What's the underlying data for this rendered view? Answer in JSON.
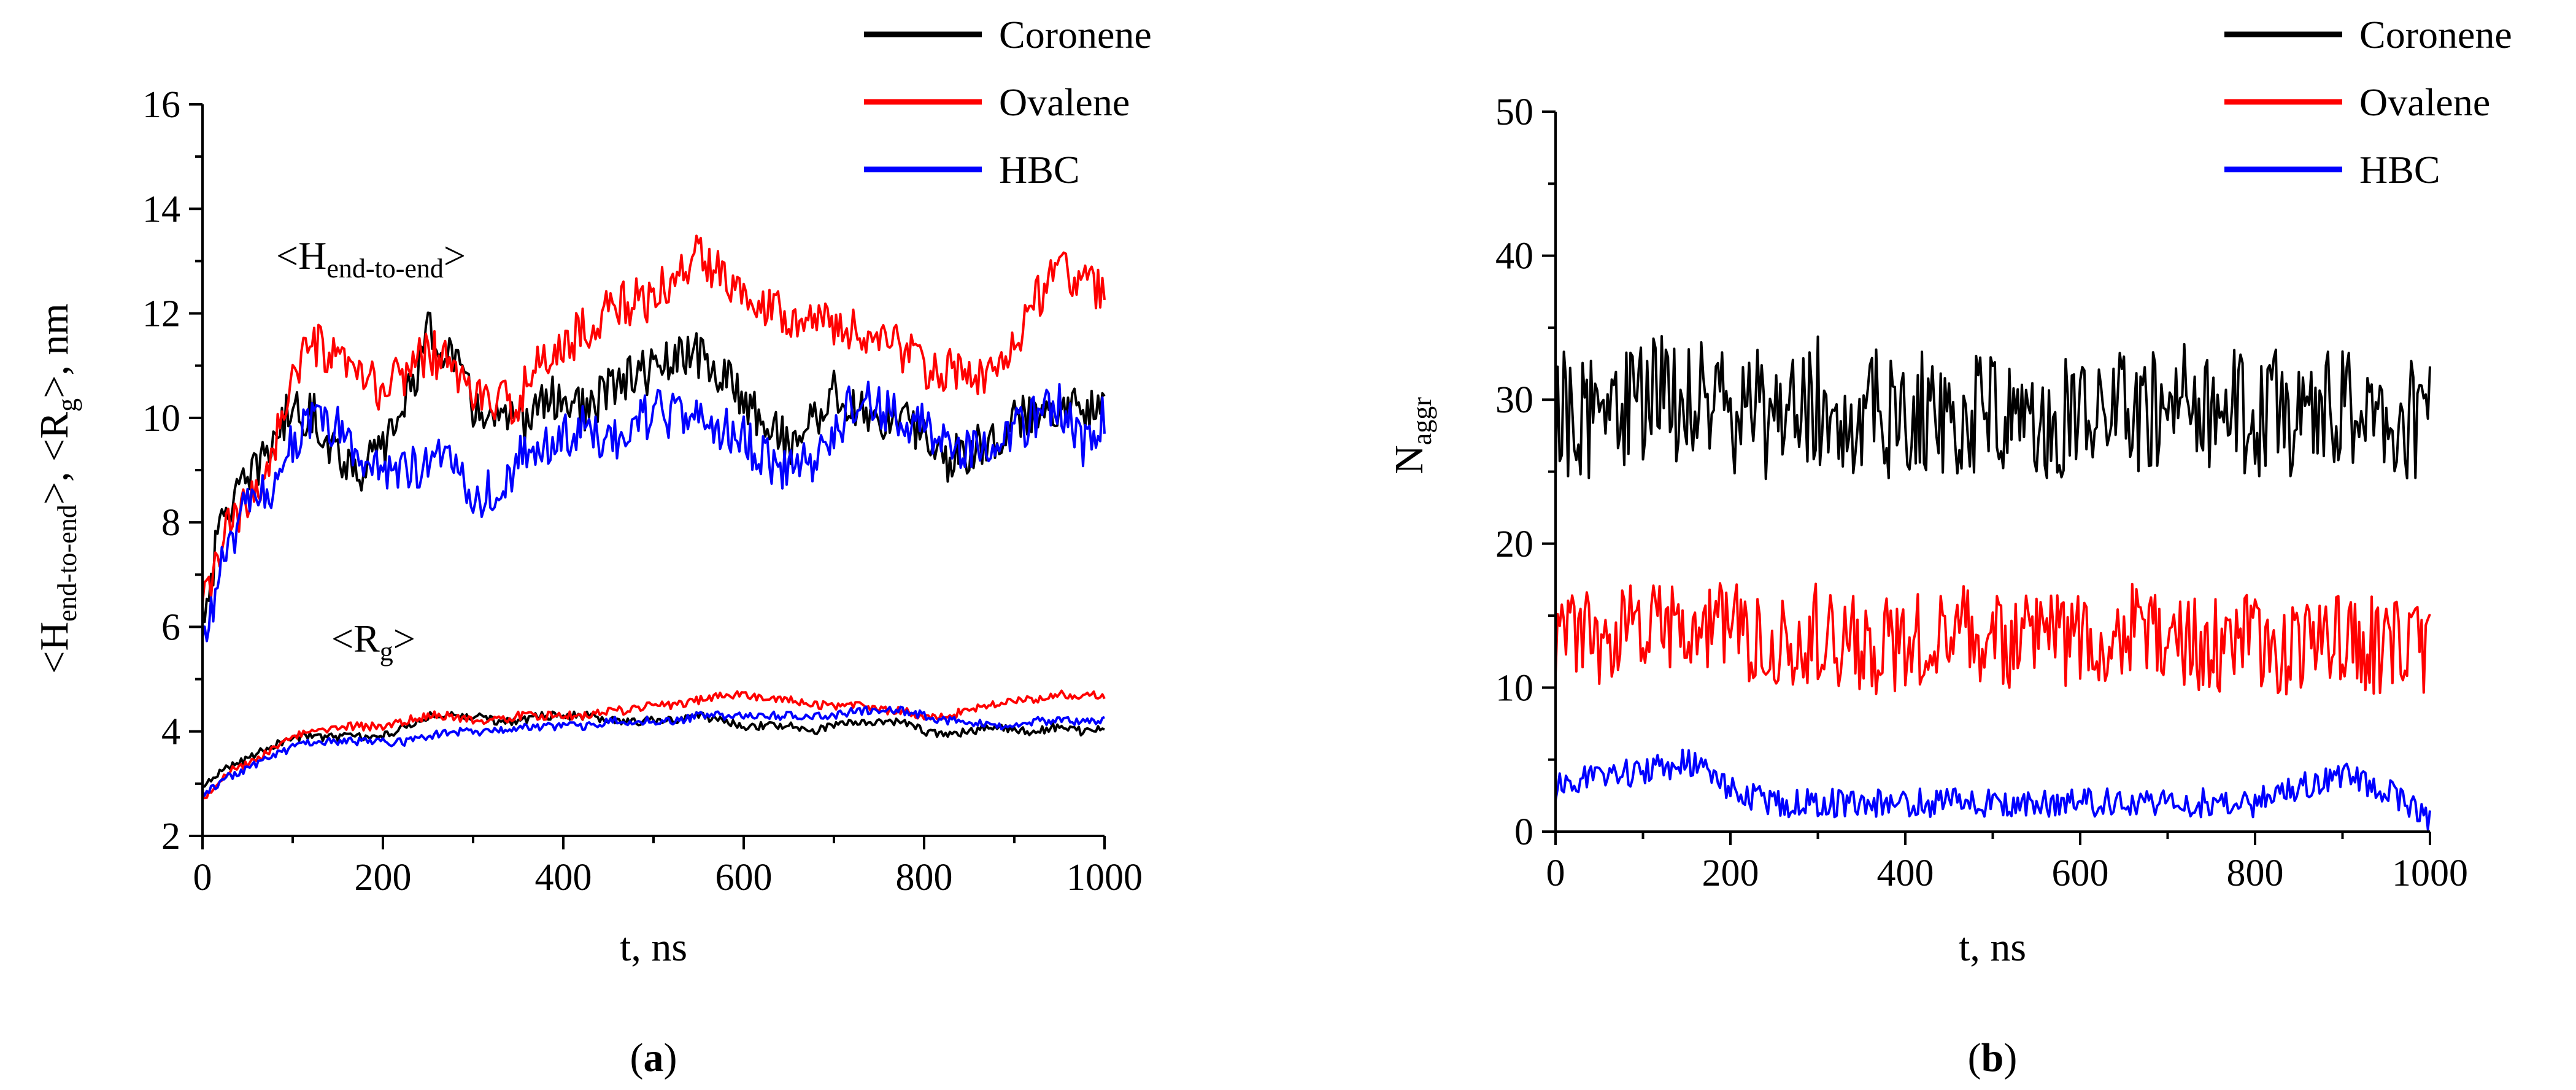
{
  "colors": {
    "coronene": "#000000",
    "ovalene": "#ff0000",
    "hbc": "#0000ff"
  },
  "panels": {
    "a": {
      "label_open": "(",
      "label_letter": "a",
      "label_close": ")"
    },
    "b": {
      "label_open": "(",
      "label_letter": "b",
      "label_close": ")"
    }
  },
  "chart_data": [
    {
      "type": "line",
      "panel": "a",
      "xlabel": "t, ns",
      "ylabel_parts": [
        "<H",
        "end-to-end",
        ">, <R",
        "g",
        ">, nm"
      ],
      "xlim": [
        0,
        1000
      ],
      "ylim": [
        2,
        16
      ],
      "xticks": [
        "0",
        "200",
        "400",
        "600",
        "800",
        "1000"
      ],
      "yticks": [
        "2",
        "4",
        "6",
        "8",
        "10",
        "12",
        "14",
        "16"
      ],
      "legend": {
        "placement": "top-right",
        "entries": [
          "Coronene",
          "Ovalene",
          "HBC"
        ]
      },
      "annotations": [
        {
          "parts": [
            "<H",
            "end-to-end",
            ">"
          ],
          "at": [
            180,
            12.6
          ]
        },
        {
          "parts": [
            "<R",
            "g",
            ">"
          ],
          "at": [
            210,
            5.3
          ]
        }
      ],
      "grid": false,
      "x": [
        0,
        25,
        50,
        75,
        100,
        125,
        150,
        175,
        200,
        225,
        250,
        275,
        300,
        325,
        350,
        375,
        400,
        425,
        450,
        475,
        500,
        525,
        550,
        575,
        600,
        625,
        650,
        675,
        700,
        725,
        750,
        775,
        800,
        825,
        850,
        875,
        900,
        925,
        950,
        975,
        1000
      ],
      "series": [
        {
          "name": "Coronene",
          "group": "H_end_to_end",
          "noise": 0.45,
          "values": [
            6.2,
            8.3,
            8.7,
            9.5,
            10.2,
            10.0,
            9.3,
            9.0,
            9.4,
            10.3,
            11.6,
            11.3,
            10.2,
            10.0,
            9.8,
            10.3,
            10.4,
            10.1,
            10.5,
            10.8,
            10.9,
            11.1,
            11.2,
            10.8,
            10.4,
            9.9,
            9.5,
            9.9,
            10.5,
            10.1,
            10.0,
            9.9,
            9.7,
            9.2,
            9.4,
            9.6,
            9.9,
            10.1,
            10.3,
            10.1,
            10.6
          ]
        },
        {
          "name": "Ovalene",
          "group": "H_end_to_end",
          "noise": 0.45,
          "values": [
            6.3,
            7.8,
            8.3,
            9.2,
            10.8,
            11.4,
            11.0,
            10.8,
            10.5,
            10.9,
            11.3,
            11.0,
            10.5,
            10.2,
            10.4,
            11.0,
            11.4,
            11.7,
            12.1,
            12.2,
            12.3,
            12.7,
            13.1,
            12.8,
            12.5,
            12.2,
            12.0,
            11.9,
            11.8,
            11.6,
            11.6,
            11.3,
            11.0,
            10.9,
            10.7,
            10.8,
            11.5,
            12.3,
            12.9,
            12.5,
            12.5
          ]
        },
        {
          "name": "HBC",
          "group": "H_end_to_end",
          "noise": 0.45,
          "values": [
            5.6,
            7.4,
            8.3,
            8.6,
            9.6,
            9.9,
            9.8,
            9.2,
            9.0,
            9.1,
            9.0,
            9.4,
            8.5,
            8.6,
            9.2,
            9.4,
            9.6,
            9.8,
            9.5,
            9.9,
            10.1,
            10.0,
            9.9,
            9.8,
            9.6,
            9.2,
            8.9,
            9.2,
            9.7,
            10.4,
            10.2,
            10.0,
            9.8,
            9.6,
            9.4,
            9.6,
            9.8,
            10.0,
            10.2,
            9.5,
            10.0
          ]
        },
        {
          "name": "Coronene",
          "group": "Rg",
          "noise": 0.08,
          "values": [
            2.9,
            3.3,
            3.5,
            3.7,
            3.9,
            3.9,
            3.9,
            3.9,
            3.9,
            4.1,
            4.3,
            4.3,
            4.3,
            4.2,
            4.2,
            4.3,
            4.3,
            4.3,
            4.2,
            4.2,
            4.2,
            4.2,
            4.3,
            4.2,
            4.1,
            4.1,
            4.1,
            4.0,
            4.1,
            4.2,
            4.2,
            4.2,
            4.0,
            3.9,
            4.0,
            4.1,
            4.0,
            4.0,
            4.1,
            4.0,
            4.1
          ]
        },
        {
          "name": "Ovalene",
          "group": "Rg",
          "noise": 0.08,
          "values": [
            2.7,
            3.2,
            3.4,
            3.6,
            3.9,
            4.0,
            4.1,
            4.1,
            4.1,
            4.2,
            4.3,
            4.3,
            4.2,
            4.2,
            4.3,
            4.3,
            4.3,
            4.3,
            4.4,
            4.4,
            4.5,
            4.5,
            4.6,
            4.7,
            4.7,
            4.6,
            4.6,
            4.5,
            4.5,
            4.5,
            4.4,
            4.4,
            4.3,
            4.3,
            4.4,
            4.5,
            4.6,
            4.6,
            4.7,
            4.7,
            4.7
          ]
        },
        {
          "name": "HBC",
          "group": "Rg",
          "noise": 0.08,
          "values": [
            2.8,
            3.1,
            3.3,
            3.5,
            3.7,
            3.8,
            3.8,
            3.8,
            3.8,
            3.8,
            3.9,
            4.0,
            4.0,
            4.0,
            4.1,
            4.1,
            4.1,
            4.1,
            4.2,
            4.2,
            4.2,
            4.2,
            4.3,
            4.3,
            4.3,
            4.3,
            4.3,
            4.3,
            4.3,
            4.4,
            4.4,
            4.4,
            4.3,
            4.2,
            4.2,
            4.1,
            4.1,
            4.2,
            4.2,
            4.2,
            4.2
          ]
        }
      ]
    },
    {
      "type": "line",
      "panel": "b",
      "xlabel": "t, ns",
      "ylabel_parts": [
        "N",
        "aggr"
      ],
      "xlim": [
        0,
        1000
      ],
      "ylim": [
        0,
        50
      ],
      "xticks": [
        "0",
        "200",
        "400",
        "600",
        "800",
        "1000"
      ],
      "yticks": [
        "0",
        "10",
        "20",
        "30",
        "40",
        "50"
      ],
      "legend": {
        "placement": "top-right",
        "entries": [
          "Coronene",
          "Ovalene",
          "HBC"
        ]
      },
      "grid": false,
      "x": [
        0,
        50,
        100,
        150,
        200,
        250,
        300,
        350,
        400,
        450,
        500,
        550,
        600,
        650,
        700,
        750,
        800,
        850,
        900,
        950,
        1000
      ],
      "series": [
        {
          "name": "Coronene",
          "noise": 4.5,
          "values": [
            29,
            29,
            30,
            30,
            29,
            29,
            30,
            29,
            29,
            29,
            29,
            29,
            29,
            29,
            30,
            29,
            29,
            29,
            29,
            29,
            29
          ]
        },
        {
          "name": "Ovalene",
          "noise": 3.5,
          "values": [
            14,
            13,
            14,
            14,
            14,
            13,
            14,
            13,
            13,
            14,
            13,
            14,
            13,
            14,
            13,
            13,
            13,
            13,
            13,
            13,
            13
          ]
        },
        {
          "name": "HBC",
          "noise": 1.0,
          "values": [
            3,
            4,
            4,
            5,
            3,
            2,
            2,
            2,
            2,
            2,
            2,
            2,
            2,
            2,
            2,
            2,
            2,
            3,
            4,
            3,
            1
          ]
        }
      ]
    }
  ]
}
